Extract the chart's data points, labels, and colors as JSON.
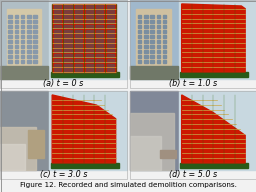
{
  "fig_bg": "#f2f2f2",
  "caption": "Figure 12. Recorded and simulated demolition comparisons.",
  "caption_fontsize": 5.2,
  "label_fontsize": 5.8,
  "panels": [
    {
      "label": "(a) t = 0 s",
      "col": 0,
      "row": 1,
      "collapse": 0.0
    },
    {
      "label": "(b) t = 1.0 s",
      "col": 1,
      "row": 1,
      "collapse": 0.1
    },
    {
      "label": "(c) t = 3.0 s",
      "col": 0,
      "row": 0,
      "collapse": 0.5
    },
    {
      "label": "(d) t = 5.0 s",
      "col": 1,
      "row": 0,
      "collapse": 0.85
    }
  ],
  "photo_colors": {
    "t0": {
      "sky": "#b0bec5",
      "bld": "#d4c8a8",
      "win": "#8899aa",
      "ground": "#7a8070"
    },
    "t1": {
      "sky": "#a0b8cc",
      "bld": "#cfc0a0",
      "win": "#7a8ea0",
      "ground": "#707868"
    },
    "t3": {
      "sky": "#889098",
      "dust": "#c8c0b0",
      "bld": "#b0a080",
      "smoke": "#d8d4cc"
    },
    "t5": {
      "sky": "#808898",
      "dust": "#bbb8b0",
      "bld": "#a09080",
      "smoke": "#cccac4"
    }
  },
  "sim_colors": {
    "bg": "#c8d8e0",
    "red": "#cc1800",
    "green": "#226600",
    "floor": "#c8a84a",
    "base": "#2a5a18",
    "win_dark": "#445566"
  },
  "num_floors": 14,
  "num_cols": 6
}
